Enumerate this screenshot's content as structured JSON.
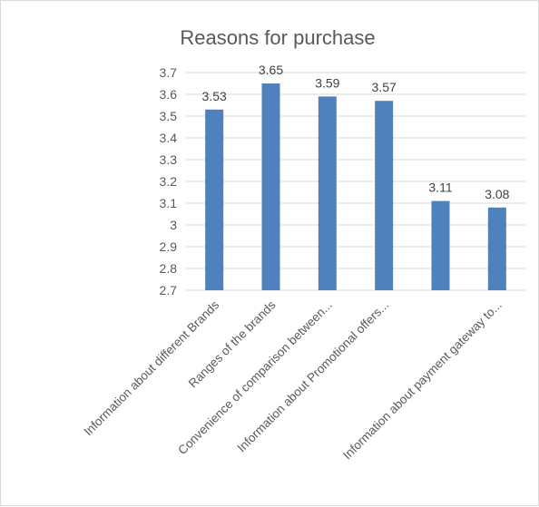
{
  "chart_data": {
    "type": "bar",
    "title": "Reasons for purchase",
    "categories": [
      "Information about different Brands",
      "Ranges of the brands",
      "Convenience of comparison between...",
      "Information about Promotional offers...",
      "",
      "Information about payment gateway to..."
    ],
    "values": [
      3.53,
      3.65,
      3.59,
      3.57,
      3.11,
      3.08
    ],
    "ylim": [
      2.7,
      3.7
    ],
    "yticks": [
      "2.7",
      "2.8",
      "2.9",
      "3",
      "3.1",
      "3.2",
      "3.3",
      "3.4",
      "3.5",
      "3.6",
      "3.7"
    ],
    "bar_color": "#4f81bd",
    "gridlines": true,
    "legend": "none"
  }
}
